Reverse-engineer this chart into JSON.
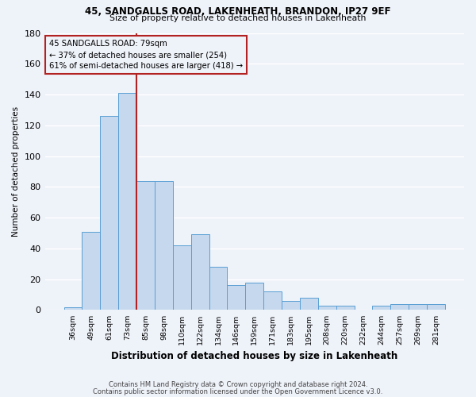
{
  "title1": "45, SANDGALLS ROAD, LAKENHEATH, BRANDON, IP27 9EF",
  "title2": "Size of property relative to detached houses in Lakenheath",
  "xlabel": "Distribution of detached houses by size in Lakenheath",
  "ylabel": "Number of detached properties",
  "bar_labels": [
    "36sqm",
    "49sqm",
    "61sqm",
    "73sqm",
    "85sqm",
    "98sqm",
    "110sqm",
    "122sqm",
    "134sqm",
    "146sqm",
    "159sqm",
    "171sqm",
    "183sqm",
    "195sqm",
    "208sqm",
    "220sqm",
    "232sqm",
    "244sqm",
    "257sqm",
    "269sqm",
    "281sqm"
  ],
  "bar_values": [
    2,
    51,
    126,
    141,
    84,
    84,
    42,
    49,
    28,
    16,
    18,
    12,
    6,
    8,
    3,
    3,
    0,
    3,
    4,
    4,
    4
  ],
  "bar_color": "#c5d8ed",
  "bar_edge_color": "#5a9fd4",
  "vline_color": "#b22222",
  "vline_x_index": 3,
  "annotation_title": "45 SANDGALLS ROAD: 79sqm",
  "annotation_line1": "← 37% of detached houses are smaller (254)",
  "annotation_line2": "61% of semi-detached houses are larger (418) →",
  "annotation_box_edge": "#b22222",
  "ylim": [
    0,
    180
  ],
  "yticks": [
    0,
    20,
    40,
    60,
    80,
    100,
    120,
    140,
    160,
    180
  ],
  "footer1": "Contains HM Land Registry data © Crown copyright and database right 2024.",
  "footer2": "Contains public sector information licensed under the Open Government Licence v3.0.",
  "bg_color": "#eef2f9",
  "grid_color": "#ffffff"
}
